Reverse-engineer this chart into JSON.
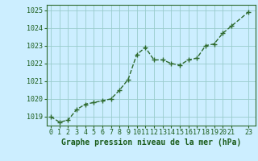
{
  "x": [
    0,
    1,
    2,
    3,
    4,
    5,
    6,
    7,
    8,
    9,
    10,
    11,
    12,
    13,
    14,
    15,
    16,
    17,
    18,
    19,
    20,
    21,
    23
  ],
  "y": [
    1019.0,
    1018.7,
    1018.8,
    1019.4,
    1019.7,
    1019.8,
    1019.9,
    1020.0,
    1020.5,
    1021.1,
    1022.5,
    1022.9,
    1022.2,
    1022.2,
    1022.0,
    1021.9,
    1022.2,
    1022.3,
    1023.0,
    1023.1,
    1023.7,
    1024.1,
    1024.9
  ],
  "ylim": [
    1018.5,
    1025.3
  ],
  "xlim": [
    -0.5,
    23.8
  ],
  "yticks": [
    1019,
    1020,
    1021,
    1022,
    1023,
    1024,
    1025
  ],
  "xticks": [
    0,
    1,
    2,
    3,
    4,
    5,
    6,
    7,
    8,
    9,
    10,
    11,
    12,
    13,
    14,
    15,
    16,
    17,
    18,
    19,
    20,
    21,
    23
  ],
  "line_color": "#2d6a2d",
  "marker": "+",
  "marker_size": 4,
  "marker_color": "#2d6a2d",
  "bg_color": "#cceeff",
  "grid_color": "#99cccc",
  "xlabel": "Graphe pression niveau de la mer (hPa)",
  "xlabel_color": "#1a5c1a",
  "xlabel_fontsize": 7,
  "tick_color": "#1a5c1a",
  "tick_fontsize": 6,
  "line_width": 1.0,
  "border_color": "#2d6a2d"
}
